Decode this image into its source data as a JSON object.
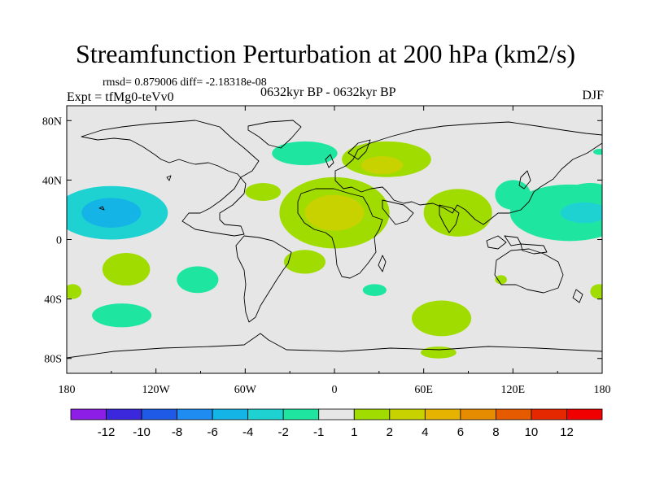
{
  "chart_data": {
    "type": "heatmap",
    "title": "Streamfunction Perturbation at 200 hPa (km2/s)",
    "stats_text": "rmsd= 0.879006 diff= -2.18318e-08",
    "experiment_label": "Expt = tfMg0-teVv0",
    "period_label": "0632kyr BP - 0632kyr BP",
    "season_label": "DJF",
    "x_ticks": [
      "180",
      "120W",
      "60W",
      "0",
      "60E",
      "120E",
      "180"
    ],
    "x_tick_values": [
      -180,
      -120,
      -60,
      0,
      60,
      120,
      180
    ],
    "y_ticks": [
      "80N",
      "40N",
      "0",
      "40S",
      "80S"
    ],
    "y_tick_values": [
      80,
      40,
      0,
      -40,
      -80
    ],
    "xlim": [
      -180,
      180
    ],
    "ylim": [
      -90,
      90
    ],
    "colorbar": {
      "labels": [
        "-12",
        "-10",
        "-8",
        "-6",
        "-4",
        "-2",
        "-1",
        "1",
        "2",
        "4",
        "6",
        "8",
        "10",
        "12"
      ],
      "colors": [
        "#8c1ee6",
        "#3c28dc",
        "#1e5ae6",
        "#1e8cf0",
        "#14b4e6",
        "#1ed2d2",
        "#1ee6a0",
        "#e6e6e6",
        "#a0dc00",
        "#c8d200",
        "#e6b400",
        "#e68c00",
        "#e65a00",
        "#e62800",
        "#f00000"
      ]
    },
    "anomalies": [
      {
        "lon": -150,
        "lat": 18,
        "rx": 38,
        "ry": 18,
        "level": "-2"
      },
      {
        "lon": -150,
        "lat": 18,
        "rx": 20,
        "ry": 10,
        "level": "-4"
      },
      {
        "lon": -48,
        "lat": 32,
        "rx": 12,
        "ry": 6,
        "level": "1"
      },
      {
        "lon": -20,
        "lat": 58,
        "rx": 22,
        "ry": 8,
        "level": "-1"
      },
      {
        "lon": 0,
        "lat": 18,
        "rx": 37,
        "ry": 24,
        "level": "1"
      },
      {
        "lon": 0,
        "lat": 18,
        "rx": 20,
        "ry": 12,
        "level": "2"
      },
      {
        "lon": 35,
        "lat": 54,
        "rx": 30,
        "ry": 12,
        "level": "1"
      },
      {
        "lon": 32,
        "lat": 50,
        "rx": 14,
        "ry": 6,
        "level": "2"
      },
      {
        "lon": 83,
        "lat": 18,
        "rx": 23,
        "ry": 16,
        "level": "1"
      },
      {
        "lon": 158,
        "lat": 18,
        "rx": 40,
        "ry": 19,
        "level": "-1"
      },
      {
        "lon": 168,
        "lat": 18,
        "rx": 16,
        "ry": 7,
        "level": "-2"
      },
      {
        "lon": 120,
        "lat": 30,
        "rx": 12,
        "ry": 10,
        "level": "-1"
      },
      {
        "lon": 172,
        "lat": 34,
        "rx": 12,
        "ry": 4,
        "level": "-1"
      },
      {
        "lon": 178,
        "lat": 59,
        "rx": 4,
        "ry": 2,
        "level": "-1"
      },
      {
        "lon": -140,
        "lat": -20,
        "rx": 16,
        "ry": 11,
        "level": "1"
      },
      {
        "lon": -92,
        "lat": -27,
        "rx": 14,
        "ry": 9,
        "level": "-1"
      },
      {
        "lon": -20,
        "lat": -15,
        "rx": 14,
        "ry": 8,
        "level": "1"
      },
      {
        "lon": 27,
        "lat": -34,
        "rx": 8,
        "ry": 4,
        "level": "-1"
      },
      {
        "lon": -143,
        "lat": -51,
        "rx": 20,
        "ry": 8,
        "level": "-1"
      },
      {
        "lon": -176,
        "lat": -35,
        "rx": 6,
        "ry": 5,
        "level": "1"
      },
      {
        "lon": 72,
        "lat": -53,
        "rx": 20,
        "ry": 12,
        "level": "1"
      },
      {
        "lon": 70,
        "lat": -76,
        "rx": 12,
        "ry": 4,
        "level": "1"
      },
      {
        "lon": 112,
        "lat": -27,
        "rx": 4,
        "ry": 3,
        "level": "1"
      },
      {
        "lon": 178,
        "lat": -35,
        "rx": 6,
        "ry": 5,
        "level": "1"
      }
    ]
  }
}
